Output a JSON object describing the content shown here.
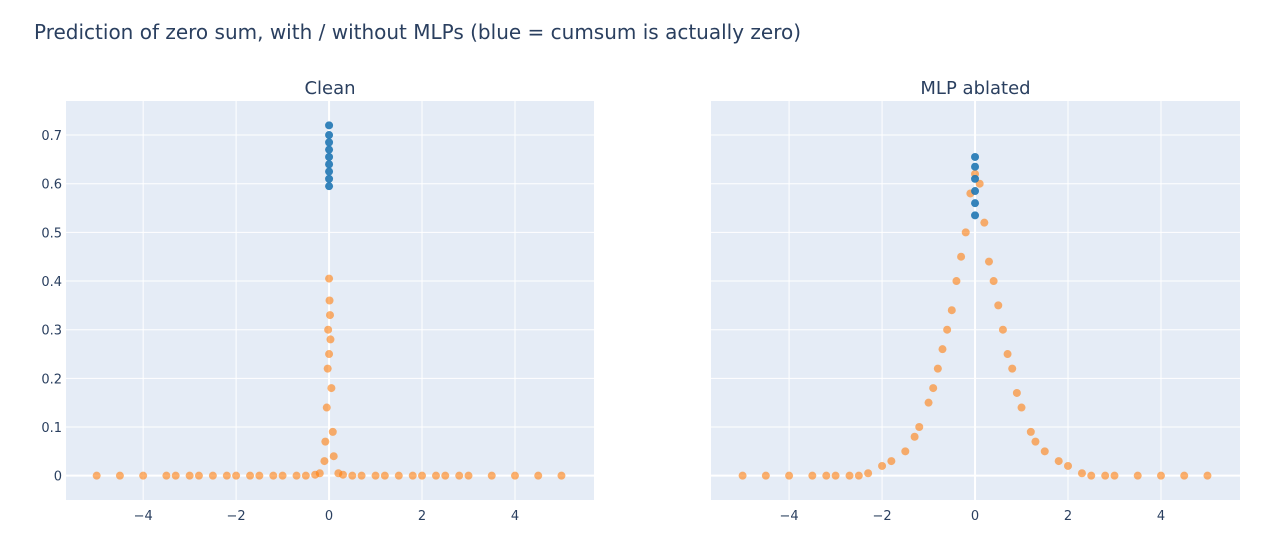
{
  "title": "Prediction of zero sum, with / without MLPs (blue = cumsum is actually zero)",
  "chart_data": [
    {
      "type": "scatter",
      "title": "Clean",
      "xlim": [
        -5.66,
        5.7
      ],
      "ylim": [
        -0.05,
        0.77
      ],
      "xticks": [
        {
          "value": -4,
          "label": "−4"
        },
        {
          "value": -2,
          "label": "−2"
        },
        0,
        2,
        4
      ],
      "yticks": [
        0,
        0.1,
        0.2,
        0.3,
        0.4,
        0.5,
        0.6,
        0.7
      ],
      "grid": true,
      "series": [
        {
          "color": "#ff7f0e",
          "opacity": 0.6,
          "x": [
            -5,
            -4.5,
            -4,
            -3.5,
            -3.3,
            -3,
            -2.8,
            -2.5,
            -2.2,
            -2,
            -1.7,
            -1.5,
            -1.2,
            -1,
            -0.7,
            -0.5,
            -0.3,
            -0.2,
            0.2,
            0.3,
            0.5,
            0.7,
            1,
            1.2,
            1.5,
            1.8,
            2,
            2.3,
            2.5,
            2.8,
            3,
            3.5,
            4,
            4.5,
            5,
            -0.1,
            -0.08,
            -0.05,
            -0.03,
            -0.02,
            0,
            0,
            0.01,
            0.02,
            0.03,
            0.05,
            0.08,
            0.1
          ],
          "values": [
            0,
            0,
            0,
            0,
            0,
            0,
            0,
            0,
            0,
            0,
            0,
            0,
            0,
            0,
            0,
            0,
            0.002,
            0.005,
            0.005,
            0.002,
            0,
            0,
            0,
            0,
            0,
            0,
            0,
            0,
            0,
            0,
            0,
            0,
            0,
            0,
            0,
            0.03,
            0.07,
            0.14,
            0.22,
            0.3,
            0.405,
            0.25,
            0.36,
            0.33,
            0.28,
            0.18,
            0.09,
            0.04
          ]
        },
        {
          "color": "#1f77b4",
          "opacity": 0.9,
          "x": [
            0,
            0,
            0,
            0,
            0,
            0,
            0,
            0,
            0
          ],
          "values": [
            0.595,
            0.61,
            0.625,
            0.64,
            0.655,
            0.67,
            0.685,
            0.7,
            0.72
          ]
        }
      ]
    },
    {
      "type": "scatter",
      "title": "MLP ablated",
      "xlim": [
        -5.68,
        5.7
      ],
      "ylim": [
        -0.05,
        0.77
      ],
      "xticks": [
        {
          "value": -4,
          "label": "−4"
        },
        {
          "value": -2,
          "label": "−2"
        },
        0,
        2,
        4
      ],
      "grid": true,
      "series": [
        {
          "color": "#ff7f0e",
          "opacity": 0.6,
          "x": [
            -5,
            -4.5,
            -4,
            -3.5,
            -3.2,
            -3,
            -2.7,
            -2.5,
            -2.3,
            -2,
            -1.8,
            -1.5,
            -1.3,
            -1.2,
            -1,
            -0.9,
            -0.8,
            -0.7,
            -0.6,
            -0.5,
            -0.4,
            -0.3,
            -0.2,
            -0.1,
            0,
            0.1,
            0.2,
            0.3,
            0.4,
            0.5,
            0.6,
            0.7,
            0.8,
            0.9,
            1,
            1.2,
            1.3,
            1.5,
            1.8,
            2,
            2.3,
            2.5,
            2.8,
            3,
            3.5,
            4,
            4.5,
            5
          ],
          "values": [
            0,
            0,
            0,
            0,
            0,
            0,
            0,
            0,
            0.005,
            0.02,
            0.03,
            0.05,
            0.08,
            0.1,
            0.15,
            0.18,
            0.22,
            0.26,
            0.3,
            0.34,
            0.4,
            0.45,
            0.5,
            0.58,
            0.62,
            0.6,
            0.52,
            0.44,
            0.4,
            0.35,
            0.3,
            0.25,
            0.22,
            0.17,
            0.14,
            0.09,
            0.07,
            0.05,
            0.03,
            0.02,
            0.005,
            0,
            0,
            0,
            0,
            0,
            0,
            0
          ]
        },
        {
          "color": "#1f77b4",
          "opacity": 0.9,
          "x": [
            0,
            0,
            0,
            0,
            0,
            0
          ],
          "values": [
            0.535,
            0.56,
            0.585,
            0.61,
            0.635,
            0.655
          ]
        }
      ]
    }
  ]
}
